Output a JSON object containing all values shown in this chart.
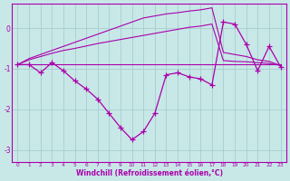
{
  "xlabel": "Windchill (Refroidissement éolien,°C)",
  "background_color": "#c8e8e8",
  "line_color": "#aa00aa",
  "grid_color": "#a0c8c8",
  "hours": [
    0,
    1,
    2,
    3,
    4,
    5,
    6,
    7,
    8,
    9,
    10,
    11,
    12,
    13,
    14,
    15,
    16,
    17,
    18,
    19,
    20,
    21,
    22,
    23
  ],
  "windchill": [
    -0.9,
    -0.9,
    -1.1,
    -0.85,
    -1.05,
    -1.3,
    -1.5,
    -1.75,
    -2.1,
    -2.45,
    -2.75,
    -2.55,
    -2.1,
    -1.15,
    -1.1,
    -1.2,
    -1.25,
    -1.4,
    0.15,
    0.1,
    -0.4,
    -1.05,
    -0.45,
    -0.95
  ],
  "flat_line": [
    -0.9,
    -0.9,
    -0.9,
    -0.9,
    -0.9,
    -0.9,
    -0.9,
    -0.9,
    -0.9,
    -0.9,
    -0.9,
    -0.9,
    -0.9,
    -0.9,
    -0.9,
    -0.9,
    -0.9,
    -0.9,
    -0.9,
    -0.9,
    -0.9,
    -0.9,
    -0.9,
    -0.9
  ],
  "upper_line": [
    -0.9,
    -0.75,
    -0.65,
    -0.55,
    -0.45,
    -0.35,
    -0.25,
    -0.15,
    -0.05,
    0.05,
    0.15,
    0.25,
    0.3,
    0.35,
    0.38,
    0.42,
    0.45,
    0.5,
    -0.6,
    -0.65,
    -0.7,
    -0.78,
    -0.82,
    -0.92
  ],
  "mid_line": [
    -0.9,
    -0.78,
    -0.7,
    -0.62,
    -0.55,
    -0.5,
    -0.44,
    -0.38,
    -0.33,
    -0.28,
    -0.23,
    -0.18,
    -0.13,
    -0.08,
    -0.03,
    0.02,
    0.05,
    0.1,
    -0.8,
    -0.82,
    -0.83,
    -0.85,
    -0.87,
    -0.92
  ],
  "ylim": [
    -3.3,
    0.6
  ],
  "yticks": [
    0,
    -1,
    -2,
    -3
  ],
  "xlim": [
    -0.5,
    23.5
  ]
}
